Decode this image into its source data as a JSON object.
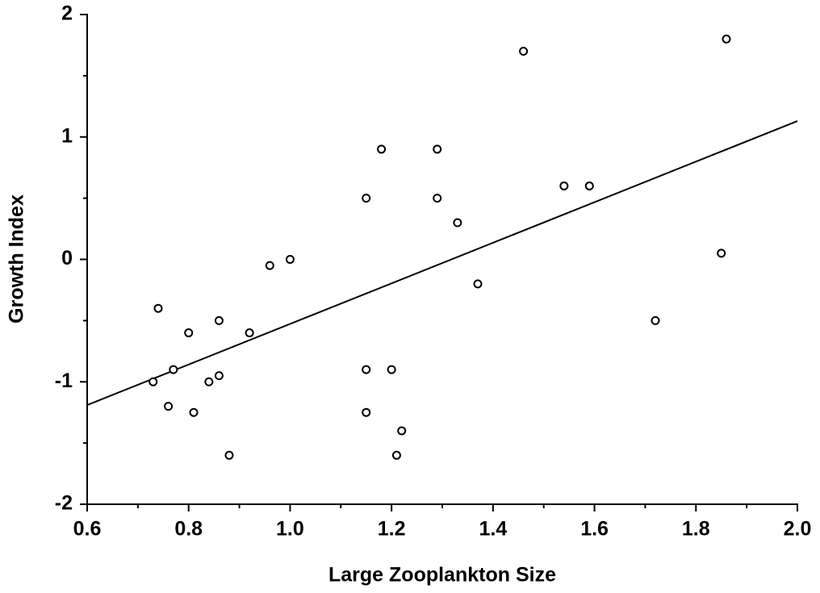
{
  "chart_data": {
    "type": "scatter",
    "xlabel": "Large Zooplankton Size",
    "ylabel": "Growth Index",
    "x": [
      0.73,
      0.74,
      0.76,
      0.77,
      0.8,
      0.81,
      0.84,
      0.86,
      0.86,
      0.88,
      0.92,
      0.96,
      1.0,
      1.15,
      1.15,
      1.15,
      1.18,
      1.2,
      1.21,
      1.22,
      1.29,
      1.29,
      1.33,
      1.37,
      1.46,
      1.54,
      1.59,
      1.72,
      1.85,
      1.86
    ],
    "values": [
      -1.0,
      -0.4,
      -1.2,
      -0.9,
      -0.6,
      -1.25,
      -1.0,
      -0.5,
      -0.95,
      -1.6,
      -0.6,
      -0.05,
      0.0,
      -0.9,
      -1.25,
      0.5,
      0.9,
      -0.9,
      -1.6,
      -1.4,
      0.9,
      0.5,
      0.3,
      -0.2,
      1.7,
      0.6,
      0.6,
      -0.5,
      0.05,
      1.8
    ],
    "color": "#000000",
    "trend_line": {
      "x": [
        0.6,
        2.0
      ],
      "values": [
        -1.19,
        1.13
      ]
    },
    "xlim": [
      0.6,
      2.0
    ],
    "xticks": [
      0.6,
      0.8,
      {
        "value": 1.0,
        "label": "1.0"
      },
      1.2,
      1.4,
      1.6,
      1.8,
      {
        "value": 2.0,
        "label": "2.0"
      }
    ],
    "ylim": [
      -2,
      2
    ],
    "yticks": [
      -2,
      -1,
      0,
      1,
      2
    ]
  }
}
